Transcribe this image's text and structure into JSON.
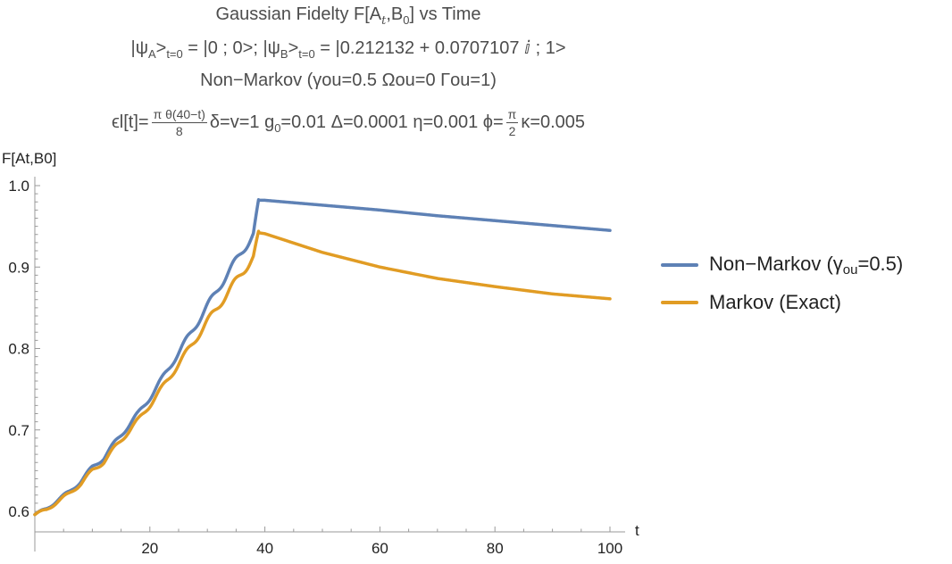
{
  "title": {
    "line1": "Gaussian Fidelty F[A",
    "line1_sub": "t",
    "line1_mid": ",B",
    "line1_sub2": "0",
    "line1_end": "] vs Time",
    "line2_a": "|ψ",
    "line2_a_sub": "A",
    "line2_b": ">",
    "line2_b_sub": "t=0",
    "line2_c": " = |0 ; 0>; |ψ",
    "line2_c_sub": "B",
    "line2_d": ">",
    "line2_d_sub": "t=0",
    "line2_e": " = |0.212132 + 0.0707107 ⅈ ; 1>",
    "line3": "Non−Markov (γou=0.5  Ωou=0 Γou=1)",
    "line4_pre": "ϵl[t]=",
    "line4_frac_num": "π θ(40−t)",
    "line4_frac_den": "8",
    "line4_mid": "δ=v=1 g",
    "line4_g_sub": "0",
    "line4_mid2": "=0.01 Δ=0.0001 η=0.001 ϕ=",
    "line4_phi_num": "π",
    "line4_phi_den": "2",
    "line4_end": "κ=0.005"
  },
  "legend": {
    "items": [
      {
        "label": "Non−Markov (γ",
        "sub": "ou",
        "label_end": "=0.5)",
        "color": "#5e81b5"
      },
      {
        "label": "Markov (Exact)",
        "sub": "",
        "label_end": "",
        "color": "#e19c24"
      }
    ]
  },
  "chart_data": {
    "type": "line",
    "title": "Gaussian Fidelty F[At,B0] vs Time",
    "xlabel": "t",
    "ylabel": "F[At,B0]",
    "xlim": [
      0,
      100
    ],
    "ylim": [
      0.58,
      1.0
    ],
    "xticks": [
      20,
      40,
      60,
      80,
      100
    ],
    "yticks": [
      0.6,
      0.7,
      0.8,
      0.9,
      1.0
    ],
    "ytick_labels": [
      "0.6",
      "0.7",
      "0.8",
      "0.9",
      "1.0"
    ],
    "series": [
      {
        "name": "Non−Markov (γou=0.5)",
        "color": "#5e81b5",
        "x": [
          0,
          2,
          4,
          6,
          8,
          10,
          12,
          14,
          16,
          18,
          20,
          22,
          24,
          26,
          28,
          30,
          32,
          34,
          36,
          38,
          39,
          40,
          50,
          60,
          70,
          80,
          90,
          100
        ],
        "y": [
          0.596,
          0.603,
          0.614,
          0.624,
          0.637,
          0.654,
          0.666,
          0.685,
          0.703,
          0.72,
          0.74,
          0.761,
          0.784,
          0.806,
          0.829,
          0.852,
          0.875,
          0.897,
          0.919,
          0.94,
          0.982,
          0.982,
          0.976,
          0.97,
          0.963,
          0.957,
          0.951,
          0.945
        ]
      },
      {
        "name": "Markov (Exact)",
        "color": "#e19c24",
        "x": [
          0,
          2,
          4,
          6,
          8,
          10,
          12,
          14,
          16,
          18,
          20,
          22,
          24,
          26,
          28,
          30,
          32,
          34,
          36,
          38,
          39,
          40,
          50,
          60,
          70,
          80,
          90,
          100
        ],
        "y": [
          0.596,
          0.602,
          0.612,
          0.622,
          0.634,
          0.65,
          0.661,
          0.679,
          0.696,
          0.712,
          0.731,
          0.75,
          0.771,
          0.791,
          0.812,
          0.833,
          0.853,
          0.873,
          0.893,
          0.912,
          0.942,
          0.941,
          0.918,
          0.9,
          0.886,
          0.876,
          0.867,
          0.861
        ]
      }
    ],
    "oscillation": {
      "period": 4.2,
      "amplitude_rise": 0.01,
      "end_t": 39
    }
  }
}
